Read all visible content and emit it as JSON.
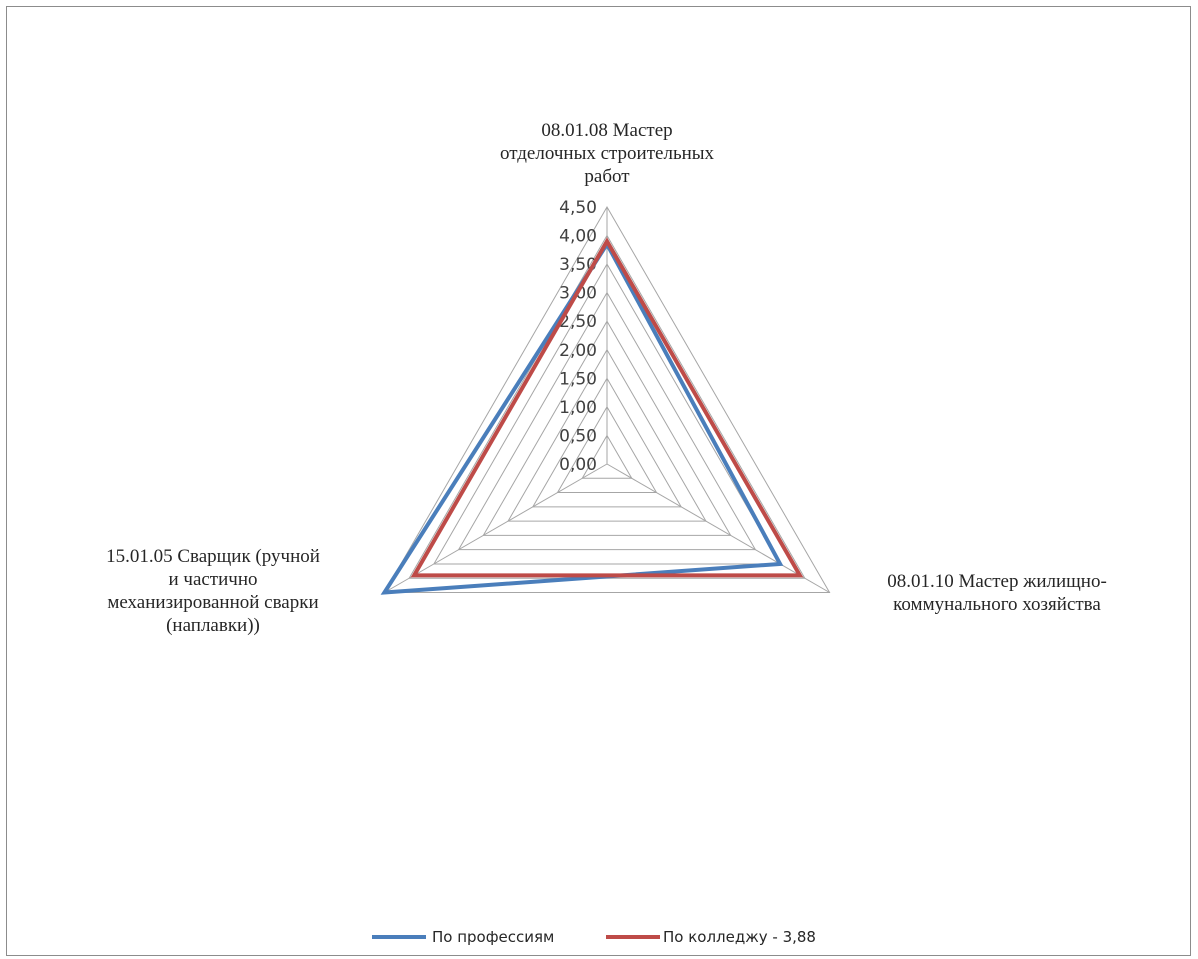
{
  "chart_data": {
    "type": "radar",
    "categories": [
      "08.01.08 Мастер отделочных строительных работ",
      "08.01.10 Мастер жилищно-коммунального хозяйства",
      "15.01.05 Сварщик (ручной и частично механизированной сварки (наплавки))"
    ],
    "category_label_lines": [
      [
        "08.01.08 Мастер",
        "отделочных строительных",
        "работ"
      ],
      [
        "08.01.10 Мастер жилищно-",
        "коммунального хозяйства"
      ],
      [
        "15.01.05 Сварщик (ручной",
        "и частично",
        "механизированной сварки",
        "(наплавки))"
      ]
    ],
    "series": [
      {
        "name": "По профессиям",
        "values": [
          3.85,
          3.5,
          4.5
        ],
        "color": "#4a7ebb"
      },
      {
        "name": "По колледжу - 3,88",
        "values": [
          3.9,
          3.9,
          3.9
        ],
        "color": "#be4b48"
      }
    ],
    "rlim": [
      0,
      4.5
    ],
    "ticks": [
      "0,00",
      "0,50",
      "1,00",
      "1,50",
      "2,00",
      "2,50",
      "3,00",
      "3,50",
      "4,00",
      "4,50"
    ],
    "grid": true,
    "legend_position": "bottom"
  }
}
